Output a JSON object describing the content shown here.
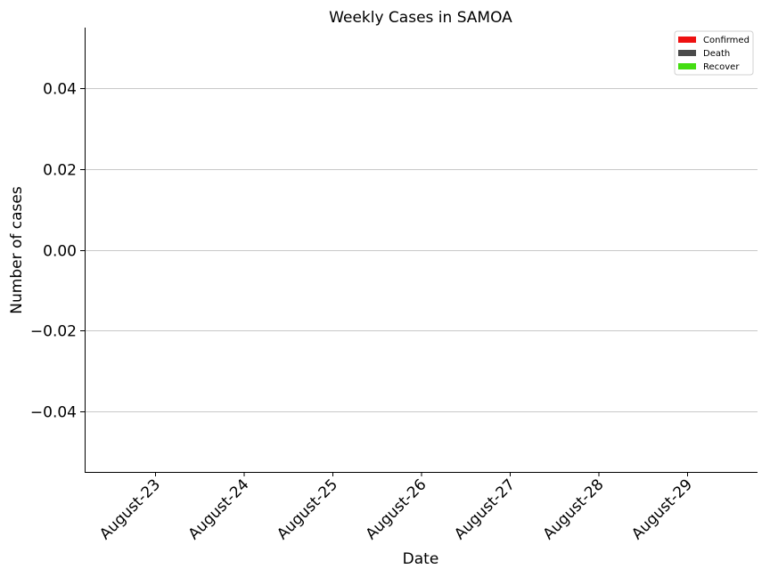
{
  "chart_data": {
    "type": "bar",
    "title": "Weekly Cases in SAMOA",
    "xlabel": "Date",
    "ylabel": "Number of cases",
    "categories": [
      "August-23",
      "August-24",
      "August-25",
      "August-26",
      "August-27",
      "August-28",
      "August-29"
    ],
    "series": [
      {
        "name": "Confirmed",
        "color": "#ee1111",
        "values": [
          0,
          0,
          0,
          0,
          0,
          0,
          0
        ]
      },
      {
        "name": "Death",
        "color": "#4a4a4a",
        "values": [
          0,
          0,
          0,
          0,
          0,
          0,
          0
        ]
      },
      {
        "name": "Recover",
        "color": "#44dd11",
        "values": [
          0,
          0,
          0,
          0,
          0,
          0,
          0
        ]
      }
    ],
    "ylim": [
      -0.055,
      0.055
    ],
    "yticks": [
      0.04,
      0.02,
      0.0,
      -0.02,
      -0.04
    ],
    "ytick_labels": [
      "0.04",
      "0.02",
      "0.00",
      "−0.02",
      "−0.04"
    ],
    "grid": "horizontal",
    "legend_position": "top-right"
  }
}
